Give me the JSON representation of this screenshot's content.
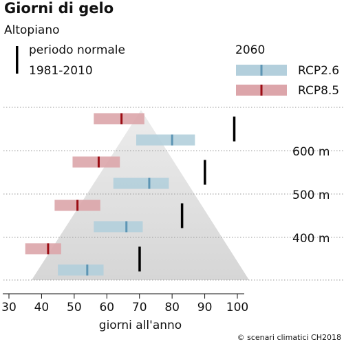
{
  "chart_data": {
    "type": "range-bar",
    "title": "Giorni di gelo",
    "subtitle": "Altopiano",
    "xlabel": "giorni all'anno",
    "ylabel": "",
    "xlim": [
      30,
      100
    ],
    "x_ticks": [
      "30",
      "40",
      "50",
      "60",
      "70",
      "80",
      "90",
      "100"
    ],
    "elevation_ticks": [
      {
        "label": "600 m",
        "elevation": 600
      },
      {
        "label": "500 m",
        "elevation": 500
      },
      {
        "label": "400 m",
        "elevation": 400
      }
    ],
    "legend": {
      "normal_line1": "periodo normale",
      "normal_line2": "1981-2010",
      "year": "2060",
      "rcp26": "RCP2.6",
      "rcp85": "RCP8.5"
    },
    "colors": {
      "rcp26_band": "#b3cfdc",
      "rcp26_median": "#5d95b4",
      "rcp85_band": "#dca5aa",
      "rcp85_median": "#9b0d14",
      "normal": "#000000",
      "triangle": "#d6d6d6",
      "grid": "#9a9a9a"
    },
    "series": [
      {
        "elevation": 350,
        "normal": 70,
        "rcp26": {
          "low": 45,
          "high": 59,
          "median": 54
        },
        "rcp85": {
          "low": 35,
          "high": 46,
          "median": 42
        }
      },
      {
        "elevation": 450,
        "normal": 83,
        "rcp26": {
          "low": 56,
          "high": 71,
          "median": 66
        },
        "rcp85": {
          "low": 44,
          "high": 58,
          "median": 51
        }
      },
      {
        "elevation": 550,
        "normal": 90,
        "rcp26": {
          "low": 62,
          "high": 79,
          "median": 73
        },
        "rcp85": {
          "low": 49.5,
          "high": 64,
          "median": 57.5
        }
      },
      {
        "elevation": 650,
        "normal": 99,
        "rcp26": {
          "low": 69,
          "high": 87,
          "median": 80
        },
        "rcp85": {
          "low": 56,
          "high": 71.5,
          "median": 64.5
        }
      }
    ]
  },
  "credit": "© scenari climatici CH2018"
}
